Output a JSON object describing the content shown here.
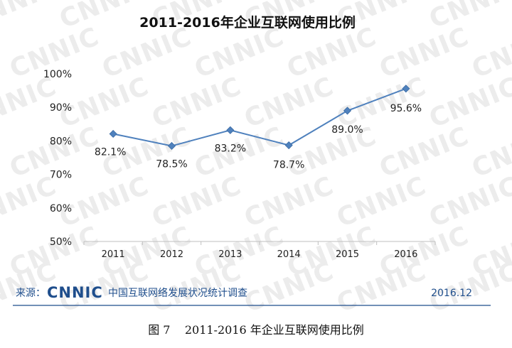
{
  "watermark": "CNNIC",
  "source": {
    "prefix": "来源：",
    "logo": "CNNIC",
    "org": "中国互联网络发展状况统计调查",
    "date": "2016.12"
  },
  "caption": "图 7    2011-2016 年企业互联网使用比例",
  "colors": {
    "series": "#4f81bd",
    "marker": "#4f81bd",
    "source_text": "#1f4e8c",
    "divider": "#1f4e8c",
    "watermark": "#ececec"
  },
  "chart_data": {
    "type": "line",
    "title": "2011-2016年企业互联网使用比例",
    "xlabel": "",
    "ylabel": "",
    "categories": [
      "2011",
      "2012",
      "2013",
      "2014",
      "2015",
      "2016"
    ],
    "series": [
      {
        "values": [
          82.1,
          78.5,
          83.2,
          78.7,
          89.0,
          95.6
        ],
        "data_labels": [
          "82.1%",
          "78.5%",
          "83.2%",
          "78.7%",
          "89.0%",
          "95.6%"
        ]
      }
    ],
    "ylim": [
      50,
      100
    ],
    "yticks": [
      50,
      60,
      70,
      80,
      90,
      100
    ],
    "ytick_labels": [
      "50%",
      "60%",
      "70%",
      "80%",
      "90%",
      "100%"
    ],
    "grid": false,
    "legend": "none"
  }
}
